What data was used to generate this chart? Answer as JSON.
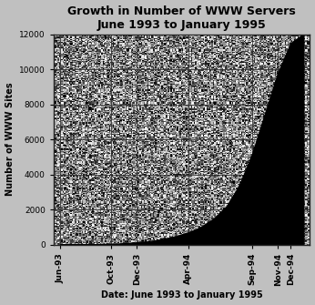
{
  "title_line1": "Growth in Number of WWW Servers",
  "title_line2": "June 1993 to January 1995",
  "xlabel": "Date: June 1993 to January 1995",
  "ylabel": "Number of WWW Sites",
  "ylim": [
    0,
    12000
  ],
  "yticks": [
    0,
    2000,
    4000,
    6000,
    8000,
    10000,
    12000
  ],
  "x_labels": [
    "Jun-93",
    "Oct-93",
    "Dec-93",
    "Apr-94",
    "Sep-94",
    "Nov-94",
    "Dec-94"
  ],
  "x_positions": [
    0,
    4,
    6,
    10,
    15,
    17,
    18
  ],
  "data_x": [
    0,
    1,
    2,
    3,
    4,
    5,
    6,
    7,
    8,
    9,
    10,
    11,
    12,
    13,
    14,
    15,
    16,
    17,
    18,
    19
  ],
  "data_y": [
    10,
    15,
    20,
    30,
    50,
    80,
    130,
    200,
    320,
    480,
    700,
    1000,
    1500,
    2200,
    3400,
    5200,
    7500,
    9800,
    11500,
    12000
  ],
  "fill_color": "#000000",
  "grid_color": "#333333",
  "title_fontsize": 9,
  "label_fontsize": 7,
  "tick_fontsize": 6.5,
  "outer_bg": "#c0c0c0",
  "noise_low": 0.6,
  "noise_high": 0.8,
  "noise_seed": 42
}
